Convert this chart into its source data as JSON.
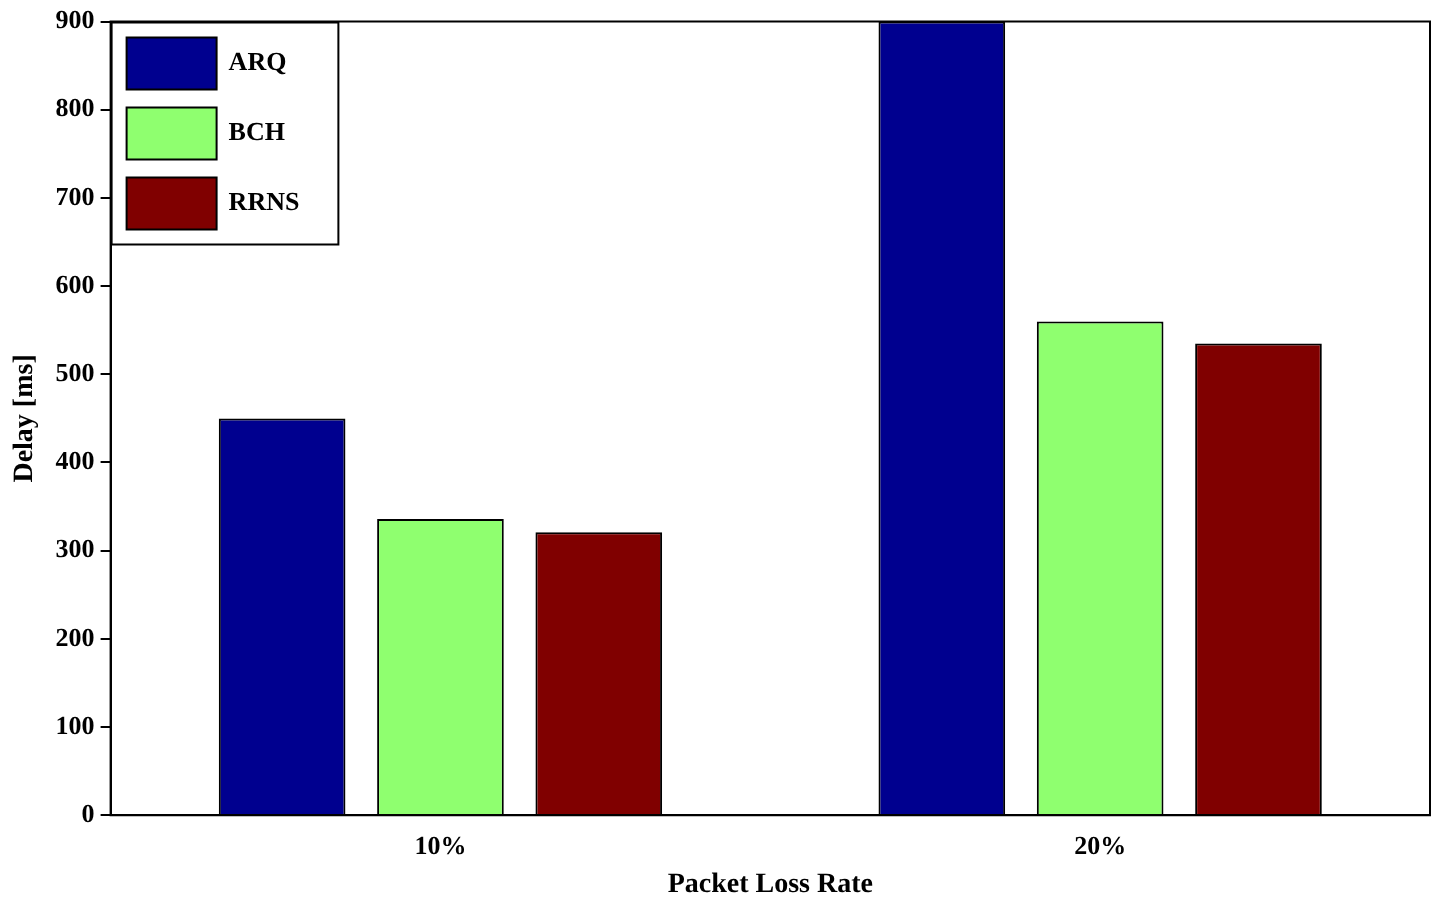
{
  "chart_data": {
    "type": "bar",
    "xlabel": "Packet Loss Rate",
    "ylabel": "Delay [ms]",
    "categories": [
      "10%",
      "20%"
    ],
    "series": [
      {
        "name": "ARQ",
        "color": "#00008f",
        "values": [
          450,
          900
        ]
      },
      {
        "name": "BCH",
        "color": "#8fff6f",
        "values": [
          336,
          560
        ]
      },
      {
        "name": "RRNS",
        "color": "#800000",
        "values": [
          321,
          535
        ]
      }
    ],
    "ylim": [
      0,
      900
    ],
    "yticks": [
      0,
      100,
      200,
      300,
      400,
      500,
      600,
      700,
      800,
      900
    ],
    "grid": false,
    "legend": "top left"
  }
}
